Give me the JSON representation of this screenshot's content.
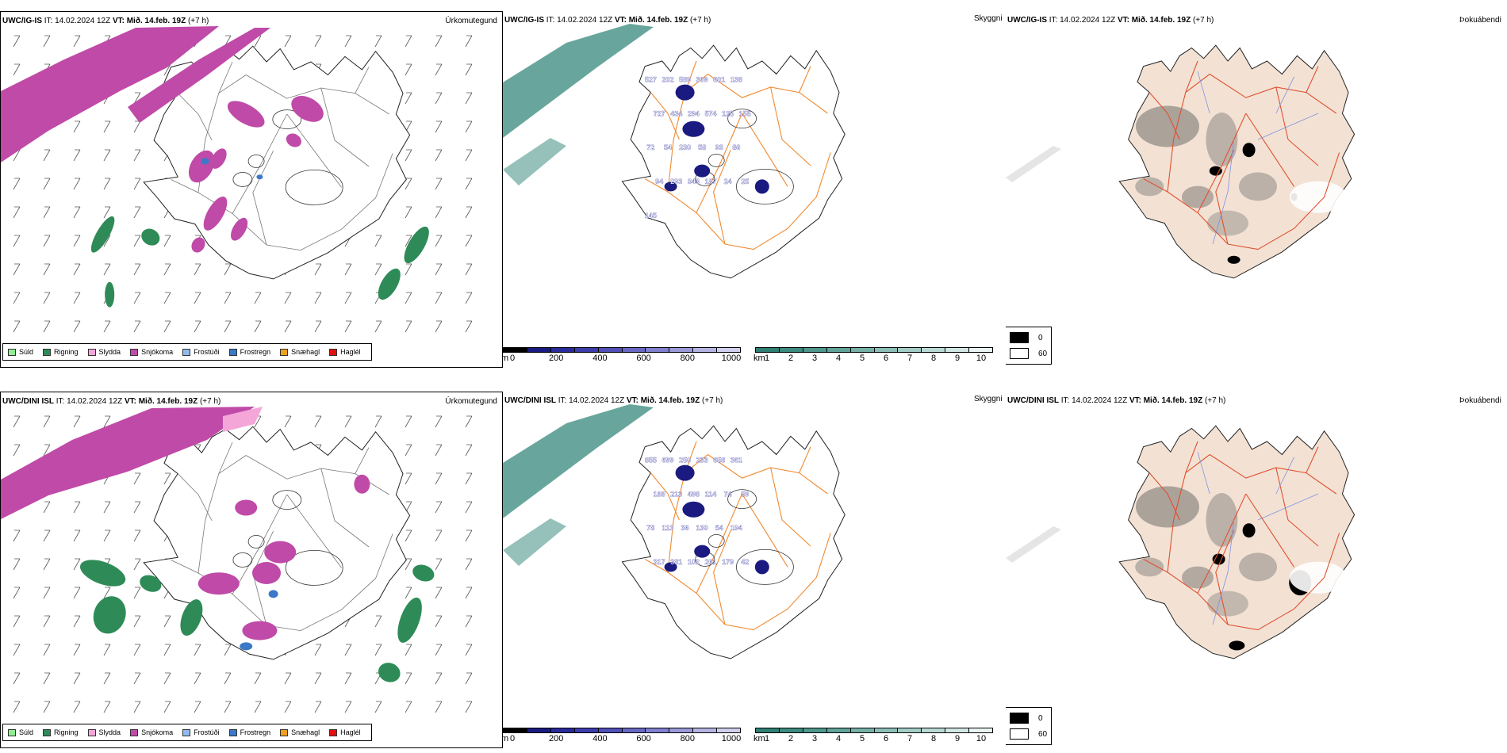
{
  "rows": [
    {
      "model": "UWC/IG-IS",
      "info_it": " IT: 14.02.2024 12Z ",
      "vt_label": "VT: Mið. 14.feb. 19Z",
      "lead": " (+7 h)",
      "panels": {
        "precip": {
          "right_label": "Úrkomutegund"
        },
        "visibility": {
          "right_label": "Skyggni"
        },
        "fog": {
          "right_label": "Þokuábendi"
        }
      },
      "visibility_labels": [
        "527",
        "202",
        "589",
        "309",
        "601",
        "138",
        "727",
        "434",
        "294",
        "574",
        "125",
        "155",
        "72",
        "54",
        "230",
        "58",
        "93",
        "86",
        "94",
        "293",
        "343",
        "187",
        "24",
        "25",
        "145"
      ]
    },
    {
      "model": "UWC/DINI ISL",
      "info_it": " IT: 14.02.2024 12Z ",
      "vt_label": "VT: Mið. 14.feb. 19Z",
      "lead": " (+7 h)",
      "panels": {
        "precip": {
          "right_label": "Úrkomutegund"
        },
        "visibility": {
          "right_label": "Skyggni"
        },
        "fog": {
          "right_label": "Þokuábendi"
        }
      },
      "visibility_labels": [
        "855",
        "699",
        "250",
        "233",
        "658",
        "361",
        "188",
        "213",
        "498",
        "114",
        "74",
        "59",
        "78",
        "113",
        "36",
        "130",
        "54",
        "194",
        "317",
        "381",
        "102",
        "261",
        "179",
        "42"
      ]
    }
  ],
  "precip_legend": [
    {
      "label": "Súld",
      "color": "#90ee90"
    },
    {
      "label": "Rigning",
      "color": "#2e8b57"
    },
    {
      "label": "Slydda",
      "color": "#f4a6d8"
    },
    {
      "label": "Snjókoma",
      "color": "#c04aa8"
    },
    {
      "label": "Frostúði",
      "color": "#8fbcf0"
    },
    {
      "label": "Frostregn",
      "color": "#3a78c8"
    },
    {
      "label": "Snæhagl",
      "color": "#f0a020"
    },
    {
      "label": "Haglél",
      "color": "#e01010"
    }
  ],
  "ceiling_scale": {
    "unit": "m",
    "ticks": [
      "0",
      "200",
      "400",
      "600",
      "800",
      "1000"
    ],
    "colors": [
      "#000000",
      "#1a1a80",
      "#2a2a9a",
      "#3c3cab",
      "#5050b8",
      "#6868c4",
      "#8080cf",
      "#9a9ad9",
      "#b4b4e3",
      "#d0d0ee"
    ]
  },
  "visibility_scale": {
    "unit": "km",
    "ticks": [
      "1",
      "2",
      "3",
      "4",
      "5",
      "6",
      "7",
      "8",
      "9",
      "10"
    ],
    "colors": [
      "#2f7f73",
      "#3d8a7f",
      "#4e978c",
      "#61a399",
      "#76b1a8",
      "#8cbfb7",
      "#a3cdc6",
      "#bad9d4",
      "#d2e7e3",
      "#eaf4f2"
    ]
  },
  "fog_legend": [
    {
      "value": "0",
      "color": "#000000"
    },
    {
      "value": "60",
      "color": "#ffffff"
    }
  ],
  "colors": {
    "land_fog": "#f3e2d4",
    "roads_orange": "#f08a30",
    "roads_red": "#e05030",
    "rivers_blue": "#8090e0",
    "snow_magenta": "#c04aa8",
    "rain_green": "#2e8b57",
    "vis_teal": "#4e978c",
    "ceiling_navy": "#1a1a80"
  }
}
